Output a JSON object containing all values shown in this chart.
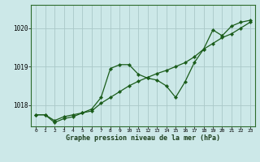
{
  "title": "Graphe pression niveau de la mer (hPa)",
  "bg_color": "#cce8e8",
  "grid_color": "#aac8c8",
  "line_color": "#1a5c1a",
  "marker_color": "#1a5c1a",
  "xlim": [
    -0.5,
    23.5
  ],
  "ylim": [
    1017.45,
    1020.6
  ],
  "yticks": [
    1018,
    1019,
    1020
  ],
  "xticks": [
    0,
    1,
    2,
    3,
    4,
    5,
    6,
    7,
    8,
    9,
    10,
    11,
    12,
    13,
    14,
    15,
    16,
    17,
    18,
    19,
    20,
    21,
    22,
    23
  ],
  "series1_x": [
    0,
    1,
    2,
    3,
    4,
    5,
    6,
    7,
    8,
    9,
    10,
    11,
    12,
    13,
    14,
    15,
    16,
    17,
    18,
    19,
    20,
    21,
    22,
    23
  ],
  "series1_y": [
    1017.75,
    1017.75,
    1017.6,
    1017.7,
    1017.75,
    1017.8,
    1017.9,
    1018.2,
    1018.95,
    1019.05,
    1019.05,
    1018.8,
    1018.7,
    1018.65,
    1018.5,
    1018.2,
    1018.6,
    1019.1,
    1019.45,
    1019.95,
    1019.8,
    1020.05,
    1020.15,
    1020.2
  ],
  "series2_x": [
    0,
    1,
    2,
    3,
    4,
    5,
    6,
    7,
    8,
    9,
    10,
    11,
    12,
    13,
    14,
    15,
    16,
    17,
    18,
    19,
    20,
    21,
    22,
    23
  ],
  "series2_y": [
    1017.75,
    1017.75,
    1017.55,
    1017.65,
    1017.7,
    1017.8,
    1017.85,
    1018.05,
    1018.2,
    1018.35,
    1018.5,
    1018.62,
    1018.72,
    1018.82,
    1018.9,
    1019.0,
    1019.1,
    1019.25,
    1019.45,
    1019.6,
    1019.75,
    1019.85,
    1020.0,
    1020.15
  ]
}
